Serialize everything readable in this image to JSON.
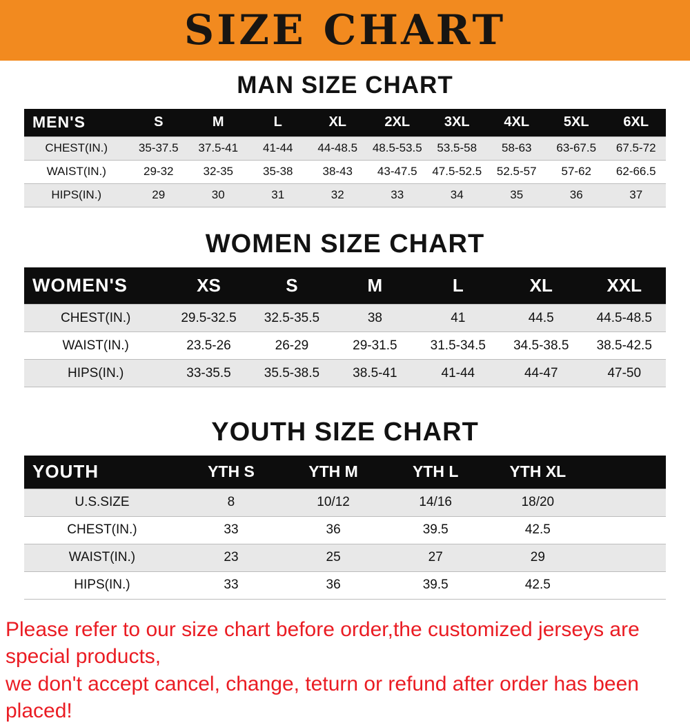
{
  "banner": {
    "title": "SIZE CHART"
  },
  "chart_data": [
    {
      "type": "table",
      "title": "MAN SIZE CHART",
      "corner_label": "MEN'S",
      "columns": [
        "S",
        "M",
        "L",
        "XL",
        "2XL",
        "3XL",
        "4XL",
        "5XL",
        "6XL"
      ],
      "rows": [
        {
          "label": "CHEST(IN.)",
          "values": [
            "35-37.5",
            "37.5-41",
            "41-44",
            "44-48.5",
            "48.5-53.5",
            "53.5-58",
            "58-63",
            "63-67.5",
            "67.5-72"
          ]
        },
        {
          "label": "WAIST(IN.)",
          "values": [
            "29-32",
            "32-35",
            "35-38",
            "38-43",
            "43-47.5",
            "47.5-52.5",
            "52.5-57",
            "57-62",
            "62-66.5"
          ]
        },
        {
          "label": "HIPS(IN.)",
          "values": [
            "29",
            "30",
            "31",
            "32",
            "33",
            "34",
            "35",
            "36",
            "37"
          ]
        }
      ]
    },
    {
      "type": "table",
      "title": "WOMEN SIZE CHART",
      "corner_label": "WOMEN'S",
      "columns": [
        "XS",
        "S",
        "M",
        "L",
        "XL",
        "XXL"
      ],
      "rows": [
        {
          "label": "CHEST(IN.)",
          "values": [
            "29.5-32.5",
            "32.5-35.5",
            "38",
            "41",
            "44.5",
            "44.5-48.5"
          ]
        },
        {
          "label": "WAIST(IN.)",
          "values": [
            "23.5-26",
            "26-29",
            "29-31.5",
            "31.5-34.5",
            "34.5-38.5",
            "38.5-42.5"
          ]
        },
        {
          "label": "HIPS(IN.)",
          "values": [
            "33-35.5",
            "35.5-38.5",
            "38.5-41",
            "41-44",
            "44-47",
            "47-50"
          ]
        }
      ]
    },
    {
      "type": "table",
      "title": "YOUTH SIZE CHART",
      "corner_label": "YOUTH",
      "columns": [
        "YTH S",
        "YTH M",
        "YTH L",
        "YTH XL"
      ],
      "rows": [
        {
          "label": "U.S.SIZE",
          "values": [
            "8",
            "10/12",
            "14/16",
            "18/20"
          ]
        },
        {
          "label": "CHEST(IN.)",
          "values": [
            "33",
            "36",
            "39.5",
            "42.5"
          ]
        },
        {
          "label": "WAIST(IN.)",
          "values": [
            "23",
            "25",
            "27",
            "29"
          ]
        },
        {
          "label": "HIPS(IN.)",
          "values": [
            "33",
            "36",
            "39.5",
            "42.5"
          ]
        }
      ]
    }
  ],
  "footer": {
    "line1": "Please refer to our size chart before order,the customized jerseys are special products,",
    "line2": "we don't accept cancel, change, teturn or refund after order has been placed!"
  },
  "colors": {
    "banner_bg": "#f28a1f",
    "banner_text": "#181512",
    "table_header_bg": "#0d0d0d",
    "table_header_text": "#ffffff",
    "row_alt_bg": "#e8e8e8",
    "row_border": "#bcbcbc",
    "notice_red": "#ea1c23"
  }
}
